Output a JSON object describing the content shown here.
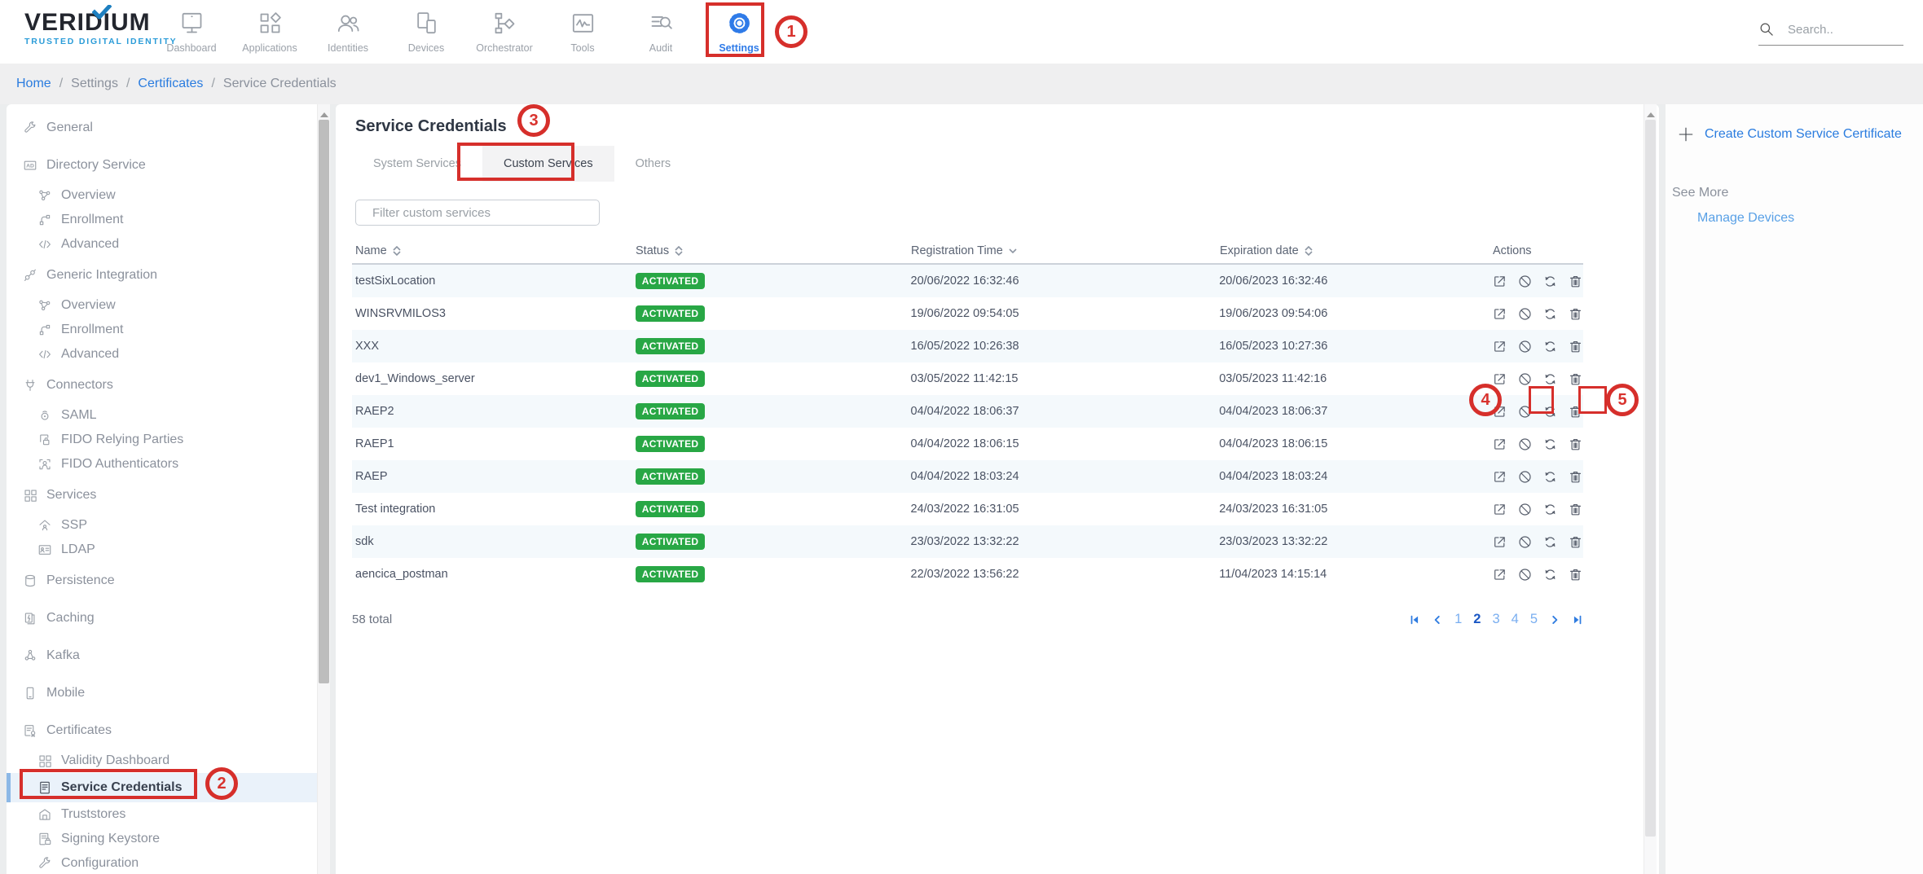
{
  "brand": {
    "name": "VERIDIUM",
    "tagline": "TRUSTED DIGITAL IDENTITY"
  },
  "nav": {
    "items": [
      {
        "label": "Dashboard",
        "icon": "monitor",
        "active": false
      },
      {
        "label": "Applications",
        "icon": "apps",
        "active": false
      },
      {
        "label": "Identities",
        "icon": "people",
        "active": false
      },
      {
        "label": "Devices",
        "icon": "devices",
        "active": false
      },
      {
        "label": "Orchestrator",
        "icon": "flow",
        "active": false
      },
      {
        "label": "Tools",
        "icon": "tools",
        "active": false
      },
      {
        "label": "Audit",
        "icon": "audit",
        "active": false
      },
      {
        "label": "Settings",
        "icon": "gear",
        "active": true
      }
    ],
    "search_placeholder": "Search.."
  },
  "breadcrumb": [
    {
      "label": "Home",
      "link": true
    },
    {
      "label": "Settings",
      "link": false
    },
    {
      "label": "Certificates",
      "link": true
    },
    {
      "label": "Service Credentials",
      "link": false
    }
  ],
  "sidebar": [
    {
      "label": "General",
      "icon": "wrench",
      "level": "top",
      "active": false
    },
    {
      "label": "Directory Service",
      "icon": "ad",
      "level": "top",
      "active": false
    },
    {
      "label": "Overview",
      "icon": "network",
      "level": "sub",
      "active": false
    },
    {
      "label": "Enrollment",
      "icon": "enroll",
      "level": "sub",
      "active": false
    },
    {
      "label": "Advanced",
      "icon": "code",
      "level": "sub",
      "active": false
    },
    {
      "label": "Generic Integration",
      "icon": "plug",
      "level": "top",
      "active": false
    },
    {
      "label": "Overview",
      "icon": "network",
      "level": "sub",
      "active": false
    },
    {
      "label": "Enrollment",
      "icon": "enroll",
      "level": "sub",
      "active": false
    },
    {
      "label": "Advanced",
      "icon": "code",
      "level": "sub",
      "active": false
    },
    {
      "label": "Connectors",
      "icon": "connector",
      "level": "top",
      "active": false
    },
    {
      "label": "SAML",
      "icon": "saml",
      "level": "sub",
      "active": false
    },
    {
      "label": "FIDO Relying Parties",
      "icon": "lockframe",
      "level": "sub",
      "active": false
    },
    {
      "label": "FIDO Authenticators",
      "icon": "scanperson",
      "level": "sub",
      "active": false
    },
    {
      "label": "Services",
      "icon": "grid",
      "level": "top",
      "active": false
    },
    {
      "label": "SSP",
      "icon": "ssp",
      "level": "sub",
      "active": false
    },
    {
      "label": "LDAP",
      "icon": "card",
      "level": "sub",
      "active": false
    },
    {
      "label": "Persistence",
      "icon": "db",
      "level": "top",
      "active": false
    },
    {
      "label": "Caching",
      "icon": "cache",
      "level": "top",
      "active": false
    },
    {
      "label": "Kafka",
      "icon": "kafka",
      "level": "top",
      "active": false
    },
    {
      "label": "Mobile",
      "icon": "mobile",
      "level": "top",
      "active": false
    },
    {
      "label": "Certificates",
      "icon": "cert",
      "level": "top",
      "active": false
    },
    {
      "label": "Validity Dashboard",
      "icon": "grid",
      "level": "sub",
      "active": false
    },
    {
      "label": "Service Credentials",
      "icon": "doc",
      "level": "sub",
      "active": true
    },
    {
      "label": "Truststores",
      "icon": "truststore",
      "level": "sub",
      "active": false
    },
    {
      "label": "Signing Keystore",
      "icon": "signing",
      "level": "sub",
      "active": false
    },
    {
      "label": "Configuration",
      "icon": "wrench",
      "level": "sub",
      "active": false
    }
  ],
  "main": {
    "title": "Service Credentials",
    "tabs": [
      {
        "label": "System Services",
        "active": false
      },
      {
        "label": "Custom Services",
        "active": true
      },
      {
        "label": "Others",
        "active": false
      }
    ],
    "filter_placeholder": "Filter custom services",
    "table": {
      "columns": [
        {
          "label": "Name",
          "sort": "both"
        },
        {
          "label": "Status",
          "sort": "both"
        },
        {
          "label": "Registration Time",
          "sort": "desc"
        },
        {
          "label": "Expiration date",
          "sort": "both"
        },
        {
          "label": "Actions",
          "sort": "none"
        }
      ],
      "action_icons": [
        "export",
        "block",
        "refresh",
        "trash"
      ],
      "rows": [
        {
          "name": "testSixLocation",
          "status": "ACTIVATED",
          "registration": "20/06/2022 16:32:46",
          "expiration": "20/06/2023 16:32:46"
        },
        {
          "name": "WINSRVMILOS3",
          "status": "ACTIVATED",
          "registration": "19/06/2022 09:54:05",
          "expiration": "19/06/2023 09:54:06"
        },
        {
          "name": "XXX",
          "status": "ACTIVATED",
          "registration": "16/05/2022 10:26:38",
          "expiration": "16/05/2023 10:27:36"
        },
        {
          "name": "dev1_Windows_server",
          "status": "ACTIVATED",
          "registration": "03/05/2022 11:42:15",
          "expiration": "03/05/2023 11:42:16"
        },
        {
          "name": "RAEP2",
          "status": "ACTIVATED",
          "registration": "04/04/2022 18:06:37",
          "expiration": "04/04/2023 18:06:37"
        },
        {
          "name": "RAEP1",
          "status": "ACTIVATED",
          "registration": "04/04/2022 18:06:15",
          "expiration": "04/04/2023 18:06:15"
        },
        {
          "name": "RAEP",
          "status": "ACTIVATED",
          "registration": "04/04/2022 18:03:24",
          "expiration": "04/04/2023 18:03:24"
        },
        {
          "name": "Test integration",
          "status": "ACTIVATED",
          "registration": "24/03/2022 16:31:05",
          "expiration": "24/03/2023 16:31:05"
        },
        {
          "name": "sdk",
          "status": "ACTIVATED",
          "registration": "23/03/2022 13:32:22",
          "expiration": "23/03/2023 13:32:22"
        },
        {
          "name": "aencica_postman",
          "status": "ACTIVATED",
          "registration": "22/03/2022 13:56:22",
          "expiration": "11/04/2023 14:15:14"
        }
      ],
      "total": "58 total"
    },
    "pagination": {
      "pages": [
        "1",
        "2",
        "3",
        "4",
        "5"
      ],
      "active": "2"
    }
  },
  "right_panel": {
    "create_label": "Create Custom Service Certificate",
    "see_more": "See More",
    "manage_label": "Manage Devices"
  },
  "annotations": [
    "1",
    "2",
    "3",
    "4",
    "5"
  ],
  "colors": {
    "accent_blue": "#2f7be8",
    "link_blue": "#2a7cdf",
    "link_light_blue": "#58a0e6",
    "status_green": "#28a745",
    "annotation_red": "#d62f2b",
    "row_alt_blue": "#f4f9fc"
  }
}
